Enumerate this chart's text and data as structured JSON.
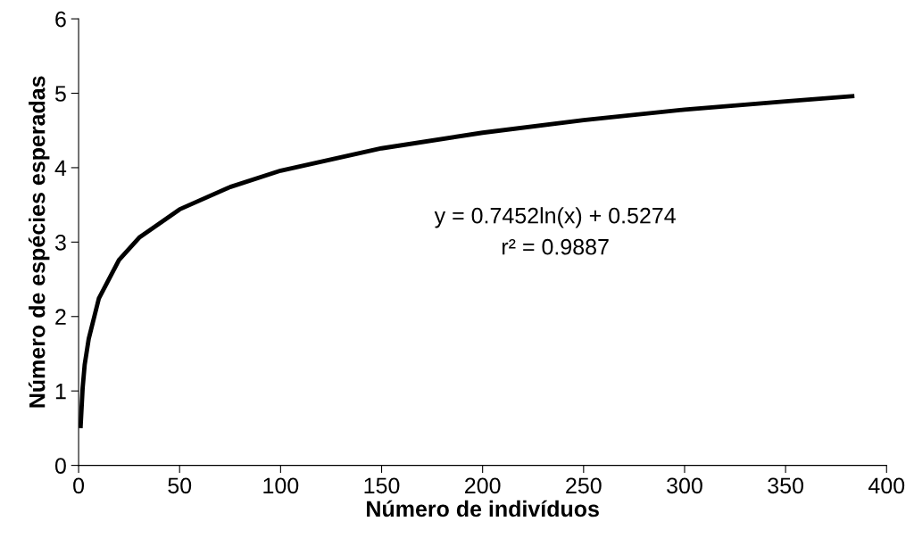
{
  "chart_data": {
    "type": "line",
    "xlabel": "Número de indivíduos",
    "ylabel": "Número de espécies esperadas",
    "x": [
      1,
      2,
      3,
      5,
      10,
      20,
      30,
      50,
      75,
      100,
      150,
      200,
      250,
      300,
      350,
      383
    ],
    "series": [
      {
        "color": "#000000",
        "values": [
          0.53,
          1.04,
          1.35,
          1.7,
          2.24,
          2.76,
          3.06,
          3.44,
          3.74,
          3.96,
          4.26,
          4.47,
          4.64,
          4.78,
          4.89,
          4.96
        ]
      }
    ],
    "xlim": [
      0,
      400
    ],
    "xticks": [
      0,
      50,
      100,
      150,
      200,
      250,
      300,
      350,
      400
    ],
    "ylim": [
      0,
      6
    ],
    "yticks": [
      0,
      1,
      2,
      3,
      4,
      5,
      6
    ],
    "annotations": [
      "y = 0.7452ln(x) + 0.5274",
      "r² = 0.9887"
    ],
    "grid": false,
    "legend": false,
    "marker": "none",
    "line_style": "solid"
  }
}
